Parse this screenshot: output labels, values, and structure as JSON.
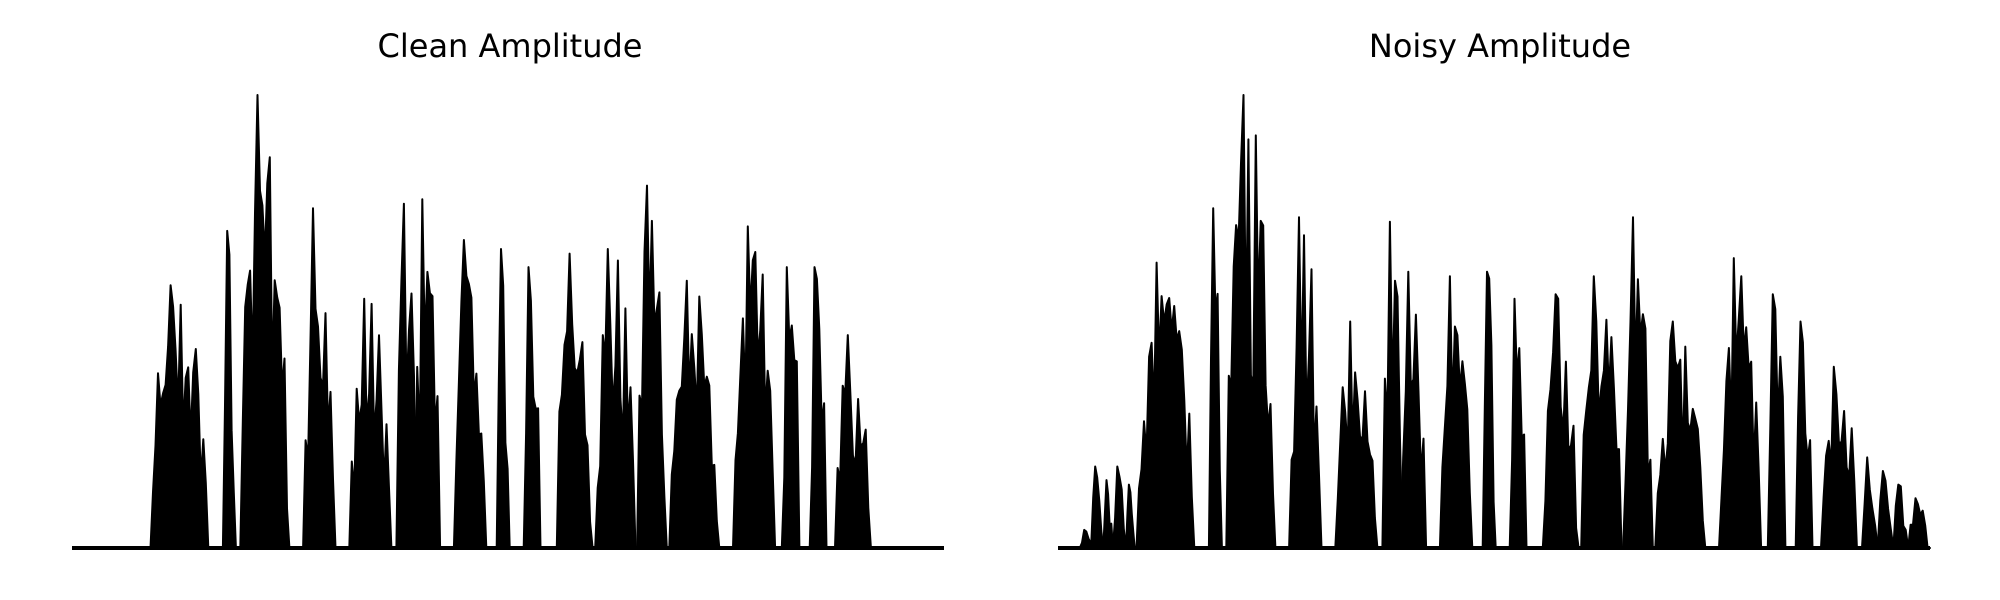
{
  "chart_data": [
    {
      "type": "area",
      "title": "Clean Amplitude",
      "xlabel": "",
      "ylabel": "",
      "xlim": [
        0,
        1
      ],
      "ylim": [
        0,
        1
      ],
      "grid": false,
      "axes_visible": false,
      "color": "#000000",
      "bursts": [
        {
          "start": 0.09,
          "end": 0.165,
          "peak": 0.58
        },
        {
          "start": 0.173,
          "end": 0.188,
          "peak": 0.7
        },
        {
          "start": 0.193,
          "end": 0.255,
          "peak": 1.0
        },
        {
          "start": 0.265,
          "end": 0.305,
          "peak": 0.75
        },
        {
          "start": 0.318,
          "end": 0.372,
          "peak": 0.55
        },
        {
          "start": 0.372,
          "end": 0.398,
          "peak": 0.76
        },
        {
          "start": 0.393,
          "end": 0.425,
          "peak": 0.77
        },
        {
          "start": 0.438,
          "end": 0.478,
          "peak": 0.68
        },
        {
          "start": 0.487,
          "end": 0.502,
          "peak": 0.66
        },
        {
          "start": 0.518,
          "end": 0.54,
          "peak": 0.62
        },
        {
          "start": 0.556,
          "end": 0.6,
          "peak": 0.65
        },
        {
          "start": 0.6,
          "end": 0.652,
          "peak": 0.66
        },
        {
          "start": 0.648,
          "end": 0.685,
          "peak": 0.8
        },
        {
          "start": 0.685,
          "end": 0.748,
          "peak": 0.59
        },
        {
          "start": 0.758,
          "end": 0.812,
          "peak": 0.71
        },
        {
          "start": 0.814,
          "end": 0.837,
          "peak": 0.62
        },
        {
          "start": 0.846,
          "end": 0.868,
          "peak": 0.62
        },
        {
          "start": 0.875,
          "end": 0.922,
          "peak": 0.47
        }
      ]
    },
    {
      "type": "area",
      "title": "Noisy Amplitude",
      "xlabel": "",
      "ylabel": "",
      "xlim": [
        0,
        1
      ],
      "ylim": [
        0,
        1
      ],
      "grid": false,
      "axes_visible": false,
      "color": "#000000",
      "bursts": [
        {
          "start": 0.025,
          "end": 0.04,
          "peak": 0.04
        },
        {
          "start": 0.038,
          "end": 0.052,
          "peak": 0.18
        },
        {
          "start": 0.052,
          "end": 0.063,
          "peak": 0.15
        },
        {
          "start": 0.063,
          "end": 0.078,
          "peak": 0.18
        },
        {
          "start": 0.078,
          "end": 0.088,
          "peak": 0.14
        },
        {
          "start": 0.09,
          "end": 0.165,
          "peak": 0.63
        },
        {
          "start": 0.173,
          "end": 0.188,
          "peak": 0.75
        },
        {
          "start": 0.193,
          "end": 0.255,
          "peak": 1.0
        },
        {
          "start": 0.265,
          "end": 0.305,
          "peak": 0.73
        },
        {
          "start": 0.318,
          "end": 0.372,
          "peak": 0.5
        },
        {
          "start": 0.372,
          "end": 0.398,
          "peak": 0.72
        },
        {
          "start": 0.393,
          "end": 0.425,
          "peak": 0.61
        },
        {
          "start": 0.438,
          "end": 0.478,
          "peak": 0.6
        },
        {
          "start": 0.487,
          "end": 0.502,
          "peak": 0.61
        },
        {
          "start": 0.518,
          "end": 0.54,
          "peak": 0.55
        },
        {
          "start": 0.556,
          "end": 0.6,
          "peak": 0.56
        },
        {
          "start": 0.6,
          "end": 0.652,
          "peak": 0.6
        },
        {
          "start": 0.648,
          "end": 0.685,
          "peak": 0.73
        },
        {
          "start": 0.685,
          "end": 0.748,
          "peak": 0.5
        },
        {
          "start": 0.758,
          "end": 0.812,
          "peak": 0.64
        },
        {
          "start": 0.814,
          "end": 0.837,
          "peak": 0.56
        },
        {
          "start": 0.846,
          "end": 0.868,
          "peak": 0.5
        },
        {
          "start": 0.875,
          "end": 0.922,
          "peak": 0.4
        },
        {
          "start": 0.922,
          "end": 0.94,
          "peak": 0.2
        },
        {
          "start": 0.94,
          "end": 0.958,
          "peak": 0.17
        },
        {
          "start": 0.958,
          "end": 0.975,
          "peak": 0.14
        },
        {
          "start": 0.975,
          "end": 1.0,
          "peak": 0.11
        }
      ]
    }
  ]
}
